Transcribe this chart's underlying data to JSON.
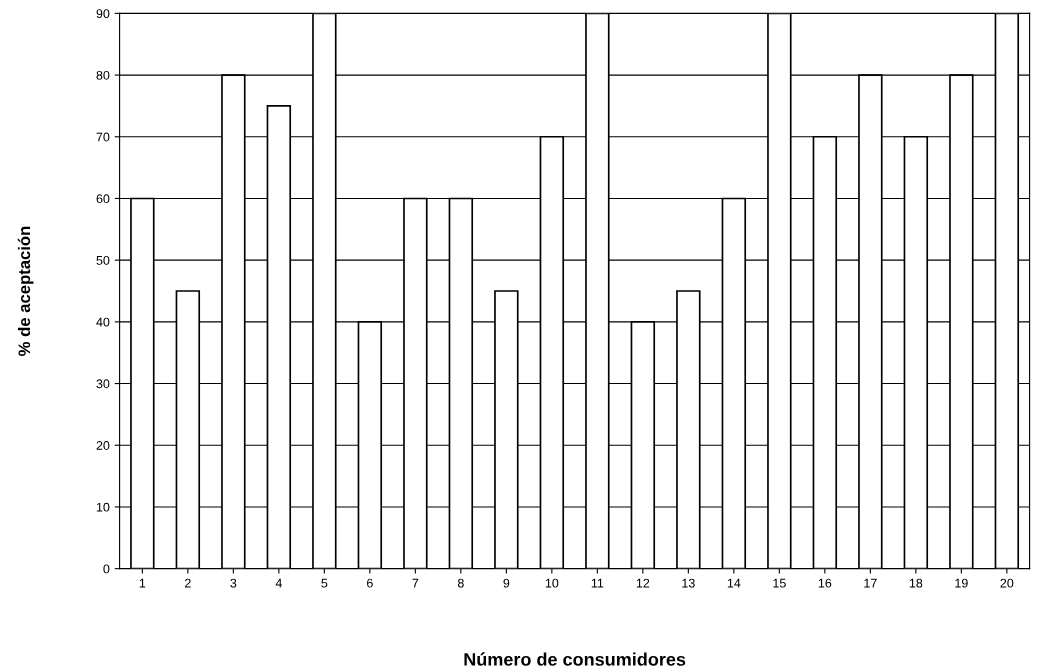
{
  "chart_data": {
    "type": "bar",
    "xlabel": "Número de consumidores",
    "ylabel": "% de aceptación",
    "categories": [
      "1",
      "2",
      "3",
      "4",
      "5",
      "6",
      "7",
      "8",
      "9",
      "10",
      "11",
      "12",
      "13",
      "14",
      "15",
      "16",
      "17",
      "18",
      "19",
      "20"
    ],
    "values": [
      60,
      45,
      80,
      75,
      90,
      40,
      60,
      60,
      45,
      70,
      90,
      40,
      45,
      60,
      90,
      70,
      80,
      70,
      80,
      90
    ],
    "color": "#ffffff",
    "ylim": [
      0,
      90
    ],
    "yticks": [
      0,
      10,
      20,
      30,
      40,
      50,
      60,
      70,
      80,
      90
    ],
    "grid": "y"
  }
}
